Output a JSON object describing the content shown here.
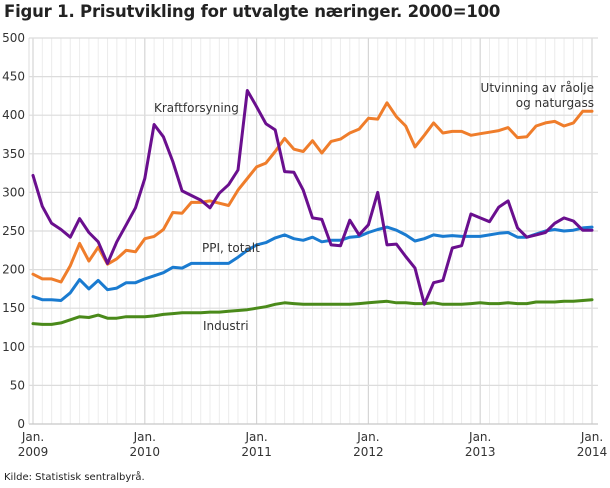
{
  "chart_data": {
    "type": "line",
    "title": "Figur 1. Prisutvikling for utvalgte næringer. 2000=100",
    "source": "Kilde: Statistisk sentralbyrå.",
    "xlabel": "",
    "ylabel": "",
    "ylim": [
      0,
      500
    ],
    "yticks": [
      "0",
      "50",
      "100",
      "150",
      "200",
      "250",
      "300",
      "350",
      "400",
      "450",
      "500"
    ],
    "ytick_values": [
      0,
      50,
      100,
      150,
      200,
      250,
      300,
      350,
      400,
      450,
      500
    ],
    "xticks": [
      {
        "month_index": 0,
        "line1": "Jan.",
        "line2": "2009"
      },
      {
        "month_index": 12,
        "line1": "Jan.",
        "line2": "2010"
      },
      {
        "month_index": 24,
        "line1": "Jan.",
        "line2": "2011"
      },
      {
        "month_index": 36,
        "line1": "Jan.",
        "line2": "2012"
      },
      {
        "month_index": 48,
        "line1": "Jan.",
        "line2": "2013"
      },
      {
        "month_index": 60,
        "line1": "Jan.",
        "line2": "2014"
      }
    ],
    "x_range_months": [
      0,
      60
    ],
    "x_description": "Monthly, Jan. 2009 – Jan. 2014",
    "grid": true,
    "series": [
      {
        "name": "Kraftforsyning",
        "label": "Kraftforsyning",
        "color": "#6a0f8e",
        "values": [
          322,
          282,
          260,
          252,
          242,
          266,
          248,
          236,
          208,
          236,
          258,
          280,
          318,
          388,
          372,
          340,
          302,
          296,
          290,
          280,
          299,
          310,
          329,
          432,
          411,
          389,
          381,
          327,
          326,
          303,
          267,
          265,
          232,
          231,
          264,
          245,
          258,
          300,
          232,
          233,
          217,
          202,
          155,
          183,
          186,
          228,
          231,
          272,
          267,
          262,
          281,
          289,
          254,
          242,
          245,
          248,
          260,
          267,
          263,
          251,
          251
        ]
      },
      {
        "name": "Utvinning av råolje og naturgass",
        "label_line1": "Utvinning av råolje",
        "label_line2": "og naturgass",
        "color": "#ef7d2b",
        "values": [
          194,
          188,
          188,
          184,
          205,
          234,
          211,
          229,
          207,
          214,
          225,
          223,
          240,
          243,
          252,
          274,
          273,
          287,
          287,
          289,
          286,
          283,
          303,
          318,
          333,
          338,
          353,
          370,
          356,
          353,
          367,
          351,
          366,
          369,
          377,
          382,
          396,
          395,
          416,
          398,
          386,
          359,
          374,
          390,
          377,
          379,
          379,
          374,
          376,
          378,
          380,
          384,
          371,
          372,
          386,
          390,
          392,
          386,
          390,
          405,
          405
        ]
      },
      {
        "name": "PPI, totalt",
        "label": "PPI, totalt",
        "color": "#1a7bd0",
        "values": [
          165,
          161,
          161,
          160,
          170,
          187,
          175,
          186,
          174,
          176,
          183,
          183,
          188,
          192,
          196,
          203,
          202,
          208,
          208,
          208,
          208,
          208,
          216,
          225,
          232,
          235,
          241,
          245,
          240,
          238,
          242,
          236,
          238,
          238,
          242,
          243,
          248,
          252,
          255,
          251,
          245,
          237,
          240,
          245,
          243,
          244,
          243,
          243,
          243,
          245,
          247,
          248,
          242,
          242,
          246,
          250,
          252,
          250,
          251,
          254,
          255
        ]
      },
      {
        "name": "Industri",
        "label": "Industri",
        "color": "#4a8a1a",
        "values": [
          130,
          129,
          129,
          131,
          135,
          139,
          138,
          141,
          137,
          137,
          139,
          139,
          139,
          140,
          142,
          143,
          144,
          144,
          144,
          145,
          145,
          146,
          147,
          148,
          150,
          152,
          155,
          157,
          156,
          155,
          155,
          155,
          155,
          155,
          155,
          156,
          157,
          158,
          159,
          157,
          157,
          156,
          156,
          157,
          155,
          155,
          155,
          156,
          157,
          156,
          156,
          157,
          156,
          156,
          158,
          158,
          158,
          159,
          159,
          160,
          161
        ]
      }
    ]
  }
}
